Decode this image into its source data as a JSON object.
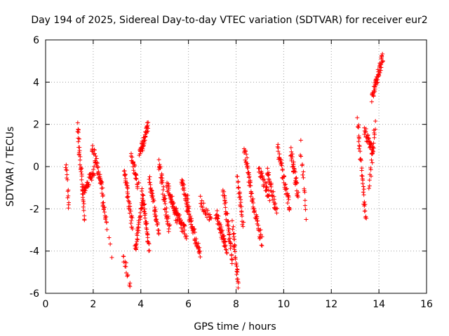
{
  "chart_data": {
    "type": "scatter",
    "title": "Day 194 of 2025, Sidereal Day-to-day VTEC variation (SDTVAR) for receiver eur2",
    "xlabel": "GPS time / hours",
    "ylabel": "SDTVAR / TECUs",
    "xlim": [
      0,
      16
    ],
    "ylim": [
      -6,
      6
    ],
    "xticks": [
      0,
      2,
      4,
      6,
      8,
      10,
      12,
      14,
      16
    ],
    "yticks": [
      -6,
      -4,
      -2,
      0,
      2,
      4,
      6
    ],
    "grid": true,
    "marker": "+",
    "color": "#ff0000",
    "clusters": [
      {
        "t0": 0.85,
        "t1": 0.98,
        "v0": 0.3,
        "v1": -2.0,
        "n": 14
      },
      {
        "t0": 1.35,
        "t1": 1.62,
        "v0": 2.0,
        "v1": -2.4,
        "n": 40
      },
      {
        "t0": 1.55,
        "t1": 2.05,
        "v0": -1.2,
        "v1": -0.2,
        "n": 40
      },
      {
        "t0": 1.95,
        "t1": 2.35,
        "v0": 0.9,
        "v1": -0.8,
        "n": 35
      },
      {
        "t0": 2.3,
        "t1": 2.55,
        "v0": -0.6,
        "v1": -2.8,
        "n": 25
      },
      {
        "t0": 2.6,
        "t1": 2.8,
        "v0": -2.8,
        "v1": -4.2,
        "n": 4
      },
      {
        "t0": 3.25,
        "t1": 3.55,
        "v0": -4.2,
        "v1": -5.7,
        "n": 14
      },
      {
        "t0": 3.3,
        "t1": 3.65,
        "v0": -0.1,
        "v1": -2.8,
        "n": 40
      },
      {
        "t0": 3.6,
        "t1": 3.9,
        "v0": 0.6,
        "v1": -1.0,
        "n": 30
      },
      {
        "t0": 3.75,
        "t1": 4.1,
        "v0": -4.0,
        "v1": -1.5,
        "n": 40
      },
      {
        "t0": 3.95,
        "t1": 4.3,
        "v0": 0.5,
        "v1": 2.0,
        "n": 45
      },
      {
        "t0": 4.05,
        "t1": 4.35,
        "v0": -1.2,
        "v1": -3.8,
        "n": 40
      },
      {
        "t0": 4.35,
        "t1": 4.75,
        "v0": -0.6,
        "v1": -3.1,
        "n": 40
      },
      {
        "t0": 4.75,
        "t1": 5.2,
        "v0": 0.2,
        "v1": -3.0,
        "n": 45
      },
      {
        "t0": 5.1,
        "t1": 5.5,
        "v0": -0.8,
        "v1": -2.5,
        "n": 40
      },
      {
        "t0": 5.4,
        "t1": 5.9,
        "v0": -2.0,
        "v1": -3.2,
        "n": 45
      },
      {
        "t0": 5.7,
        "t1": 6.0,
        "v0": -0.6,
        "v1": -1.8,
        "n": 25
      },
      {
        "t0": 5.9,
        "t1": 6.5,
        "v0": -1.8,
        "v1": -4.2,
        "n": 55
      },
      {
        "t0": 6.5,
        "t1": 6.95,
        "v0": -1.6,
        "v1": -2.6,
        "n": 25
      },
      {
        "t0": 7.15,
        "t1": 7.6,
        "v0": -2.2,
        "v1": -3.9,
        "n": 50
      },
      {
        "t0": 7.45,
        "t1": 7.85,
        "v0": -1.0,
        "v1": -4.4,
        "n": 45
      },
      {
        "t0": 7.85,
        "t1": 8.1,
        "v0": -2.8,
        "v1": -5.6,
        "n": 30
      },
      {
        "t0": 8.05,
        "t1": 8.3,
        "v0": -0.4,
        "v1": -2.8,
        "n": 25
      },
      {
        "t0": 8.35,
        "t1": 8.7,
        "v0": 0.8,
        "v1": -1.6,
        "n": 40
      },
      {
        "t0": 8.7,
        "t1": 9.1,
        "v0": -1.8,
        "v1": -3.6,
        "n": 30
      },
      {
        "t0": 8.95,
        "t1": 9.4,
        "v0": -0.1,
        "v1": -1.4,
        "n": 35
      },
      {
        "t0": 9.3,
        "t1": 9.7,
        "v0": -0.2,
        "v1": -2.2,
        "n": 35
      },
      {
        "t0": 9.75,
        "t1": 10.25,
        "v0": 0.9,
        "v1": -2.0,
        "n": 45
      },
      {
        "t0": 10.3,
        "t1": 10.6,
        "v0": 0.8,
        "v1": -1.4,
        "n": 35
      },
      {
        "t0": 10.7,
        "t1": 10.95,
        "v0": 1.0,
        "v1": -2.3,
        "n": 15
      },
      {
        "t0": 13.1,
        "t1": 13.45,
        "v0": 2.1,
        "v1": -2.5,
        "n": 40
      },
      {
        "t0": 13.4,
        "t1": 13.75,
        "v0": 1.7,
        "v1": 0.6,
        "n": 35
      },
      {
        "t0": 13.6,
        "t1": 13.85,
        "v0": -1.0,
        "v1": 2.0,
        "n": 20
      },
      {
        "t0": 13.7,
        "t1": 14.15,
        "v0": 3.2,
        "v1": 5.2,
        "n": 55
      }
    ]
  }
}
